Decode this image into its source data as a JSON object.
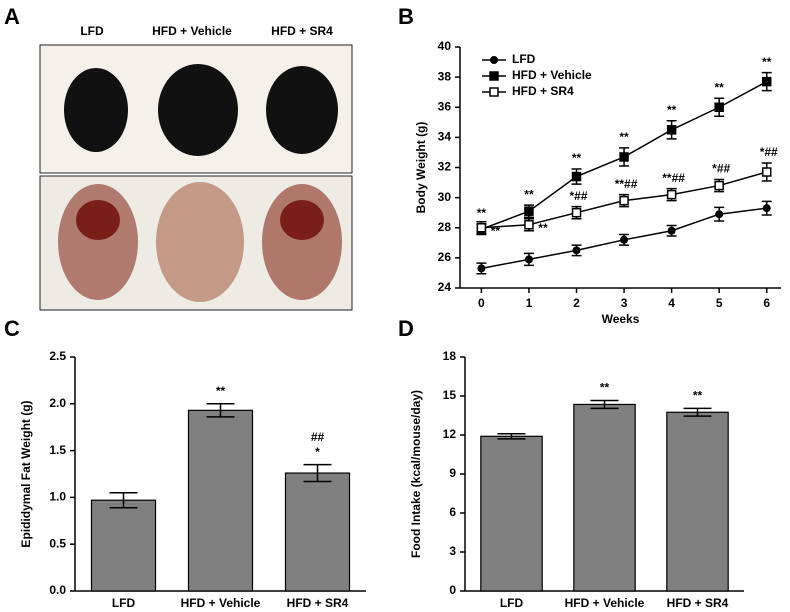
{
  "photo_panel": {
    "panel": "A",
    "labels": [
      "LFD",
      "HFD + Vehicle",
      "HFD + SR4"
    ]
  },
  "chart_data": [
    {
      "panel": "B",
      "type": "line",
      "x_label": "Weeks",
      "y_label": "Body Weight (g)",
      "x": [
        0,
        1,
        2,
        3,
        4,
        5,
        6
      ],
      "xlim": [
        -0.45,
        6.3
      ],
      "xticks": [
        0,
        1,
        2,
        3,
        4,
        5,
        6
      ],
      "ylim": [
        24,
        40
      ],
      "yticks": [
        24,
        26,
        28,
        30,
        32,
        34,
        36,
        38,
        40
      ],
      "legend": "upper-left",
      "series": [
        {
          "name": "LFD",
          "color": "#000000",
          "marker": "filled-circle",
          "values": [
            25.3,
            25.9,
            26.5,
            27.2,
            27.8,
            28.9,
            29.3
          ],
          "errors": [
            0.35,
            0.4,
            0.35,
            0.35,
            0.35,
            0.45,
            0.45
          ]
        },
        {
          "name": "HFD + Vehicle",
          "color": "#000000",
          "marker": "filled-square",
          "values": [
            27.9,
            29.1,
            31.4,
            32.7,
            34.5,
            36.0,
            37.7
          ],
          "errors": [
            0.35,
            0.4,
            0.5,
            0.6,
            0.6,
            0.6,
            0.6
          ],
          "annotations": [
            "**",
            "**",
            "**",
            "**",
            "**",
            "**",
            "**"
          ]
        },
        {
          "name": "HFD + SR4",
          "color": "#000000",
          "marker": "open-square",
          "values": [
            28.0,
            28.2,
            29.0,
            29.8,
            30.2,
            30.8,
            31.7
          ],
          "errors": [
            0.4,
            0.4,
            0.4,
            0.4,
            0.4,
            0.4,
            0.6
          ],
          "annotations": [
            "**",
            "**",
            "*##",
            "**##",
            "**##",
            "*##",
            "*##"
          ]
        }
      ]
    },
    {
      "panel": "C",
      "type": "bar",
      "y_label": "Epididymal Fat Weight (g)",
      "categories": [
        "LFD",
        "HFD + Vehicle",
        "HFD + SR4"
      ],
      "color": "#808080",
      "values": [
        0.97,
        1.93,
        1.26
      ],
      "errors": [
        0.08,
        0.07,
        0.09
      ],
      "annotations": [
        null,
        [
          "**"
        ],
        [
          "##",
          "*"
        ]
      ],
      "ylim": [
        0,
        2.5
      ],
      "yticks": [
        {
          "value": 0,
          "label": "0.0"
        },
        0.5,
        {
          "value": 1,
          "label": "1.0"
        },
        1.5,
        {
          "value": 2,
          "label": "2.0"
        },
        2.5
      ]
    },
    {
      "panel": "D",
      "type": "bar",
      "y_label": "Food Intake (kcal/mouse/day)",
      "categories": [
        "LFD",
        "HFD + Vehicle",
        "HFD + SR4"
      ],
      "color": "#808080",
      "values": [
        11.9,
        14.35,
        13.75
      ],
      "errors": [
        0.2,
        0.3,
        0.3
      ],
      "annotations": [
        null,
        [
          "**"
        ],
        [
          "**"
        ]
      ],
      "ylim": [
        0,
        18
      ],
      "yticks": [
        0,
        3,
        6,
        9,
        12,
        15,
        18
      ]
    }
  ]
}
